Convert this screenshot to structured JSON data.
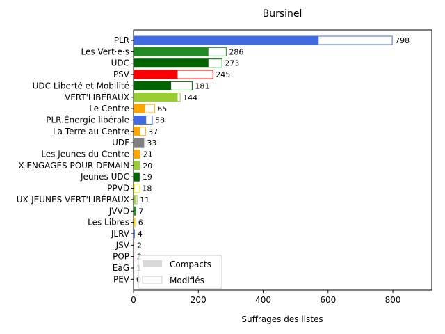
{
  "chart_data": {
    "type": "bar",
    "orientation": "horizontal",
    "stacked": true,
    "title": "Bursinel",
    "xlabel": "Suffrages des listes",
    "ylabel": "",
    "xlim": [
      0,
      920
    ],
    "xticks": [
      0,
      200,
      400,
      600,
      800
    ],
    "legend_placement": "bottom-left",
    "categories": [
      "PLR",
      "Les Vert·e·s",
      "UDC",
      "PSV",
      "UDC Liberté et Mobilité",
      "VERT'LIBÉRAUX",
      "Le Centre",
      "PLR.Énergie libérale",
      "La Terre au Centre",
      "UDF",
      "Les Jeunes du Centre",
      "X-ENGAGÉS POUR DEMAIN",
      "Jeunes UDC",
      "PPVD",
      "UX-JEUNES VERT'LIBÉRAUX",
      "JVVD",
      "Les Libres",
      "JLRV",
      "JSV",
      "POP",
      "EàG",
      "PEV"
    ],
    "colors": [
      "#4169e1",
      "#228b22",
      "#006400",
      "#ff0000",
      "#006400",
      "#9acd32",
      "#ffa500",
      "#4169e1",
      "#ffa500",
      "#808080",
      "#ffa500",
      "#9acd32",
      "#006400",
      "#ffff00",
      "#9acd32",
      "#228b22",
      "#ffd700",
      "#4169e1",
      "#8b0000",
      "#8b0000",
      "#ff0000",
      "#ffff00"
    ],
    "series": [
      {
        "name": "Compacts",
        "values": [
          570,
          230,
          230,
          135,
          115,
          135,
          35,
          38,
          20,
          33,
          21,
          20,
          19,
          3,
          5,
          5,
          3,
          4,
          2,
          2,
          1,
          0
        ]
      },
      {
        "name": "Modifiés",
        "values": [
          228,
          56,
          43,
          110,
          66,
          9,
          30,
          20,
          17,
          0,
          0,
          0,
          0,
          15,
          6,
          2,
          3,
          0,
          0,
          0,
          0,
          0
        ]
      }
    ],
    "totals": [
      798,
      286,
      273,
      245,
      181,
      144,
      65,
      58,
      37,
      33,
      21,
      20,
      19,
      18,
      11,
      7,
      6,
      4,
      2,
      2,
      1,
      0
    ]
  }
}
